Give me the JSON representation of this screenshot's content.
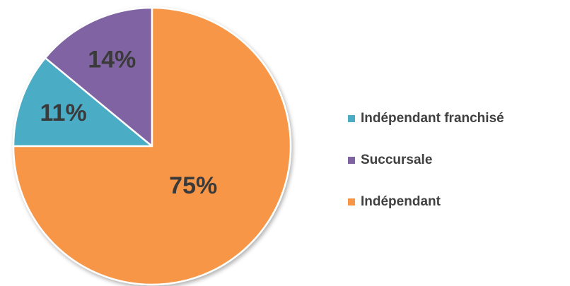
{
  "chart_data": {
    "type": "pie",
    "categories": [
      "Indépendant franchisé",
      "Succursale",
      "Indépendant"
    ],
    "values": [
      11,
      14,
      75
    ],
    "value_labels": [
      "11%",
      "14%",
      "75%"
    ],
    "colors": [
      "#4bacc6",
      "#8064a2",
      "#f79646"
    ],
    "legend": "right"
  }
}
